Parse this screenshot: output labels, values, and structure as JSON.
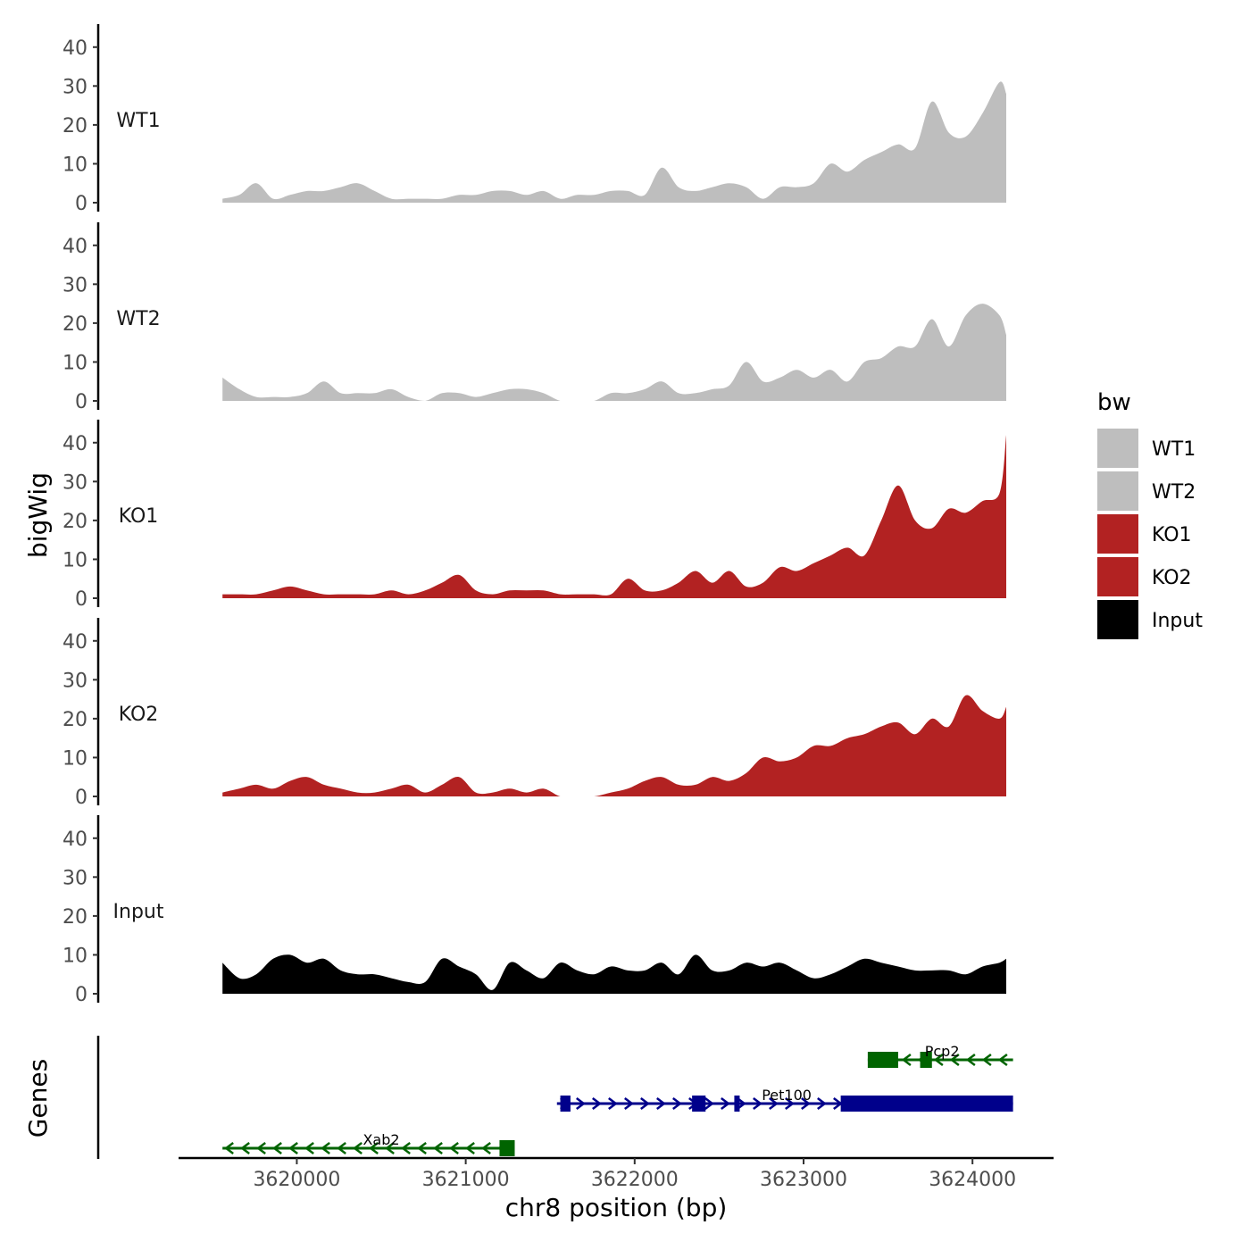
{
  "chart_data": {
    "type": "area",
    "xlabel": "chr8 position (bp)",
    "ylabel": "bigWig",
    "xlim": [
      3619300,
      3624480
    ],
    "ylim": [
      0,
      45
    ],
    "x_ticks": [
      3620000,
      3621000,
      3622000,
      3623000,
      3624000
    ],
    "x_tick_labels": [
      "3620000",
      "3621000",
      "3622000",
      "3623000",
      "3624000"
    ],
    "y_ticks": [
      0,
      10,
      20,
      30,
      40
    ],
    "y_tick_labels": [
      "0",
      "10",
      "20",
      "30",
      "40"
    ],
    "legend_title": "bw",
    "legend_position": "right",
    "genes_panel_label": "Genes",
    "x": [
      3619560,
      3619660,
      3619760,
      3619860,
      3619960,
      3620060,
      3620160,
      3620260,
      3620360,
      3620460,
      3620560,
      3620660,
      3620760,
      3620860,
      3620960,
      3621060,
      3621160,
      3621260,
      3621360,
      3621460,
      3621560,
      3621660,
      3621760,
      3621860,
      3621960,
      3622060,
      3622160,
      3622260,
      3622360,
      3622460,
      3622560,
      3622660,
      3622760,
      3622860,
      3622960,
      3623060,
      3623160,
      3623260,
      3623360,
      3623460,
      3623560,
      3623660,
      3623760,
      3623860,
      3623960,
      3624060,
      3624160,
      3624200
    ],
    "series": [
      {
        "name": "WT1",
        "legend_label": "WT1",
        "color": "#bebebe",
        "values": [
          1,
          2,
          5,
          1,
          2,
          3,
          3,
          4,
          5,
          3,
          1,
          1,
          1,
          1,
          2,
          2,
          3,
          3,
          2,
          3,
          1,
          2,
          2,
          3,
          3,
          2,
          9,
          4,
          3,
          4,
          5,
          4,
          1,
          4,
          4,
          5,
          10,
          8,
          11,
          13,
          15,
          14,
          26,
          18,
          17,
          23,
          31,
          28
        ]
      },
      {
        "name": "WT2",
        "legend_label": "WT2",
        "color": "#bebebe",
        "values": [
          6,
          3,
          1,
          1,
          1,
          2,
          5,
          2,
          2,
          2,
          3,
          1,
          0,
          2,
          2,
          1,
          2,
          3,
          3,
          2,
          0,
          0,
          0,
          2,
          2,
          3,
          5,
          2,
          2,
          3,
          4,
          10,
          5,
          6,
          8,
          6,
          8,
          5,
          10,
          11,
          14,
          14,
          21,
          14,
          22,
          25,
          22,
          17
        ]
      },
      {
        "name": "KO1",
        "legend_label": "KO1",
        "color": "#b22222",
        "values": [
          1,
          1,
          1,
          2,
          3,
          2,
          1,
          1,
          1,
          1,
          2,
          1,
          2,
          4,
          6,
          2,
          1,
          2,
          2,
          2,
          1,
          1,
          1,
          1,
          5,
          2,
          2,
          4,
          7,
          4,
          7,
          3,
          4,
          8,
          7,
          9,
          11,
          13,
          11,
          20,
          29,
          20,
          18,
          23,
          22,
          25,
          27,
          42
        ]
      },
      {
        "name": "KO2",
        "legend_label": "KO2",
        "color": "#b22222",
        "values": [
          1,
          2,
          3,
          2,
          4,
          5,
          3,
          2,
          1,
          1,
          2,
          3,
          1,
          3,
          5,
          1,
          1,
          2,
          1,
          2,
          0,
          0,
          0,
          1,
          2,
          4,
          5,
          3,
          3,
          5,
          4,
          6,
          10,
          9,
          10,
          13,
          13,
          15,
          16,
          18,
          19,
          16,
          20,
          18,
          26,
          22,
          20,
          23
        ]
      },
      {
        "name": "Input",
        "legend_label": "Input",
        "color": "#000000",
        "values": [
          8,
          4,
          5,
          9,
          10,
          8,
          9,
          6,
          5,
          5,
          4,
          3,
          3,
          9,
          7,
          5,
          1,
          8,
          6,
          4,
          8,
          6,
          5,
          7,
          6,
          6,
          8,
          5,
          10,
          6,
          6,
          8,
          7,
          8,
          6,
          4,
          5,
          7,
          9,
          8,
          7,
          6,
          6,
          6,
          5,
          7,
          8,
          9
        ]
      }
    ],
    "genes": [
      {
        "name": "Pcp2",
        "strand": "-",
        "color": "#006400",
        "row": 1,
        "start": 3623380,
        "end": 3624240,
        "exons": [
          [
            3623380,
            3623560
          ],
          [
            3623690,
            3623760
          ]
        ]
      },
      {
        "name": "Pet100",
        "strand": "+",
        "color": "#00008b",
        "row": 2,
        "start": 3621540,
        "end": 3624240,
        "exons": [
          [
            3621560,
            3621620
          ],
          [
            3622340,
            3622420
          ],
          [
            3622590,
            3622620
          ],
          [
            3623220,
            3624240
          ]
        ]
      },
      {
        "name": "Xab2",
        "strand": "-",
        "color": "#006400",
        "row": 3,
        "start": 3619560,
        "end": 3621290,
        "exons": [
          [
            3621200,
            3621290
          ]
        ]
      }
    ]
  }
}
